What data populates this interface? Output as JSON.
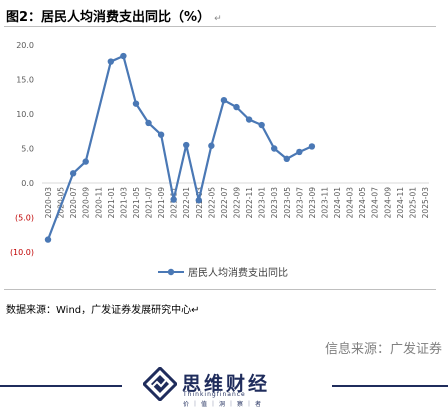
{
  "title": "图2：居民人均消费支出同比（%）",
  "title_mark": "↵",
  "source_note": "数据来源：Wind，广发证券发展研究中心↵",
  "source_right": "信息来源：广发证券",
  "brand": {
    "name": "思维财经",
    "sub": "Thinkingfinance",
    "sub2": "价｜值｜洞｜察｜者"
  },
  "colors": {
    "series": "#4a78b5",
    "axis_text": "#595959",
    "negative_text": "#c00000",
    "brand": "#1f2c5c"
  },
  "chart_data": {
    "type": "line",
    "title": "",
    "xlabel": "",
    "ylabel": "",
    "ylim": [
      -10,
      20
    ],
    "y_ticks": [
      {
        "value": 20,
        "label": "20.0"
      },
      {
        "value": 15,
        "label": "15.0"
      },
      {
        "value": 10,
        "label": "10.0"
      },
      {
        "value": 5,
        "label": "5.0"
      },
      {
        "value": 0,
        "label": "0.0"
      },
      {
        "value": -5,
        "label": "(5.0)"
      },
      {
        "value": -10,
        "label": "(10.0)"
      }
    ],
    "categories": [
      "2020-03",
      "2020-05",
      "2020-07",
      "2020-09",
      "2020-11",
      "2021-01",
      "2021-03",
      "2021-05",
      "2021-07",
      "2021-09",
      "2021-11",
      "2022-01",
      "2022-03",
      "2022-05",
      "2022-07",
      "2022-09",
      "2022-11",
      "2023-01",
      "2023-03",
      "2023-05",
      "2023-07",
      "2023-09",
      "2023-11",
      "2024-01",
      "2024-03",
      "2024-05",
      "2024-07",
      "2024-09",
      "2024-11",
      "2025-01",
      "2025-03"
    ],
    "series": [
      {
        "name": "居民人均消费支出同比",
        "points": [
          {
            "x": "2020-03",
            "y": -8.2
          },
          {
            "x": "2020-07",
            "y": 1.4
          },
          {
            "x": "2020-09",
            "y": 3.1
          },
          {
            "x": "2021-01",
            "y": 17.6
          },
          {
            "x": "2021-03",
            "y": 18.4
          },
          {
            "x": "2021-05",
            "y": 11.5
          },
          {
            "x": "2021-07",
            "y": 8.7
          },
          {
            "x": "2021-09",
            "y": 7.0
          },
          {
            "x": "2021-11",
            "y": -2.4
          },
          {
            "x": "2022-01",
            "y": 5.5
          },
          {
            "x": "2022-03",
            "y": -2.5
          },
          {
            "x": "2022-05",
            "y": 5.4
          },
          {
            "x": "2022-07",
            "y": 12.0
          },
          {
            "x": "2022-09",
            "y": 11.0
          },
          {
            "x": "2022-11",
            "y": 9.2
          },
          {
            "x": "2023-01",
            "y": 8.4
          },
          {
            "x": "2023-03",
            "y": 5.0
          },
          {
            "x": "2023-05",
            "y": 3.5
          },
          {
            "x": "2023-07",
            "y": 4.5
          },
          {
            "x": "2023-09",
            "y": 5.3
          }
        ]
      }
    ],
    "legend_position": "bottom",
    "grid": false
  }
}
